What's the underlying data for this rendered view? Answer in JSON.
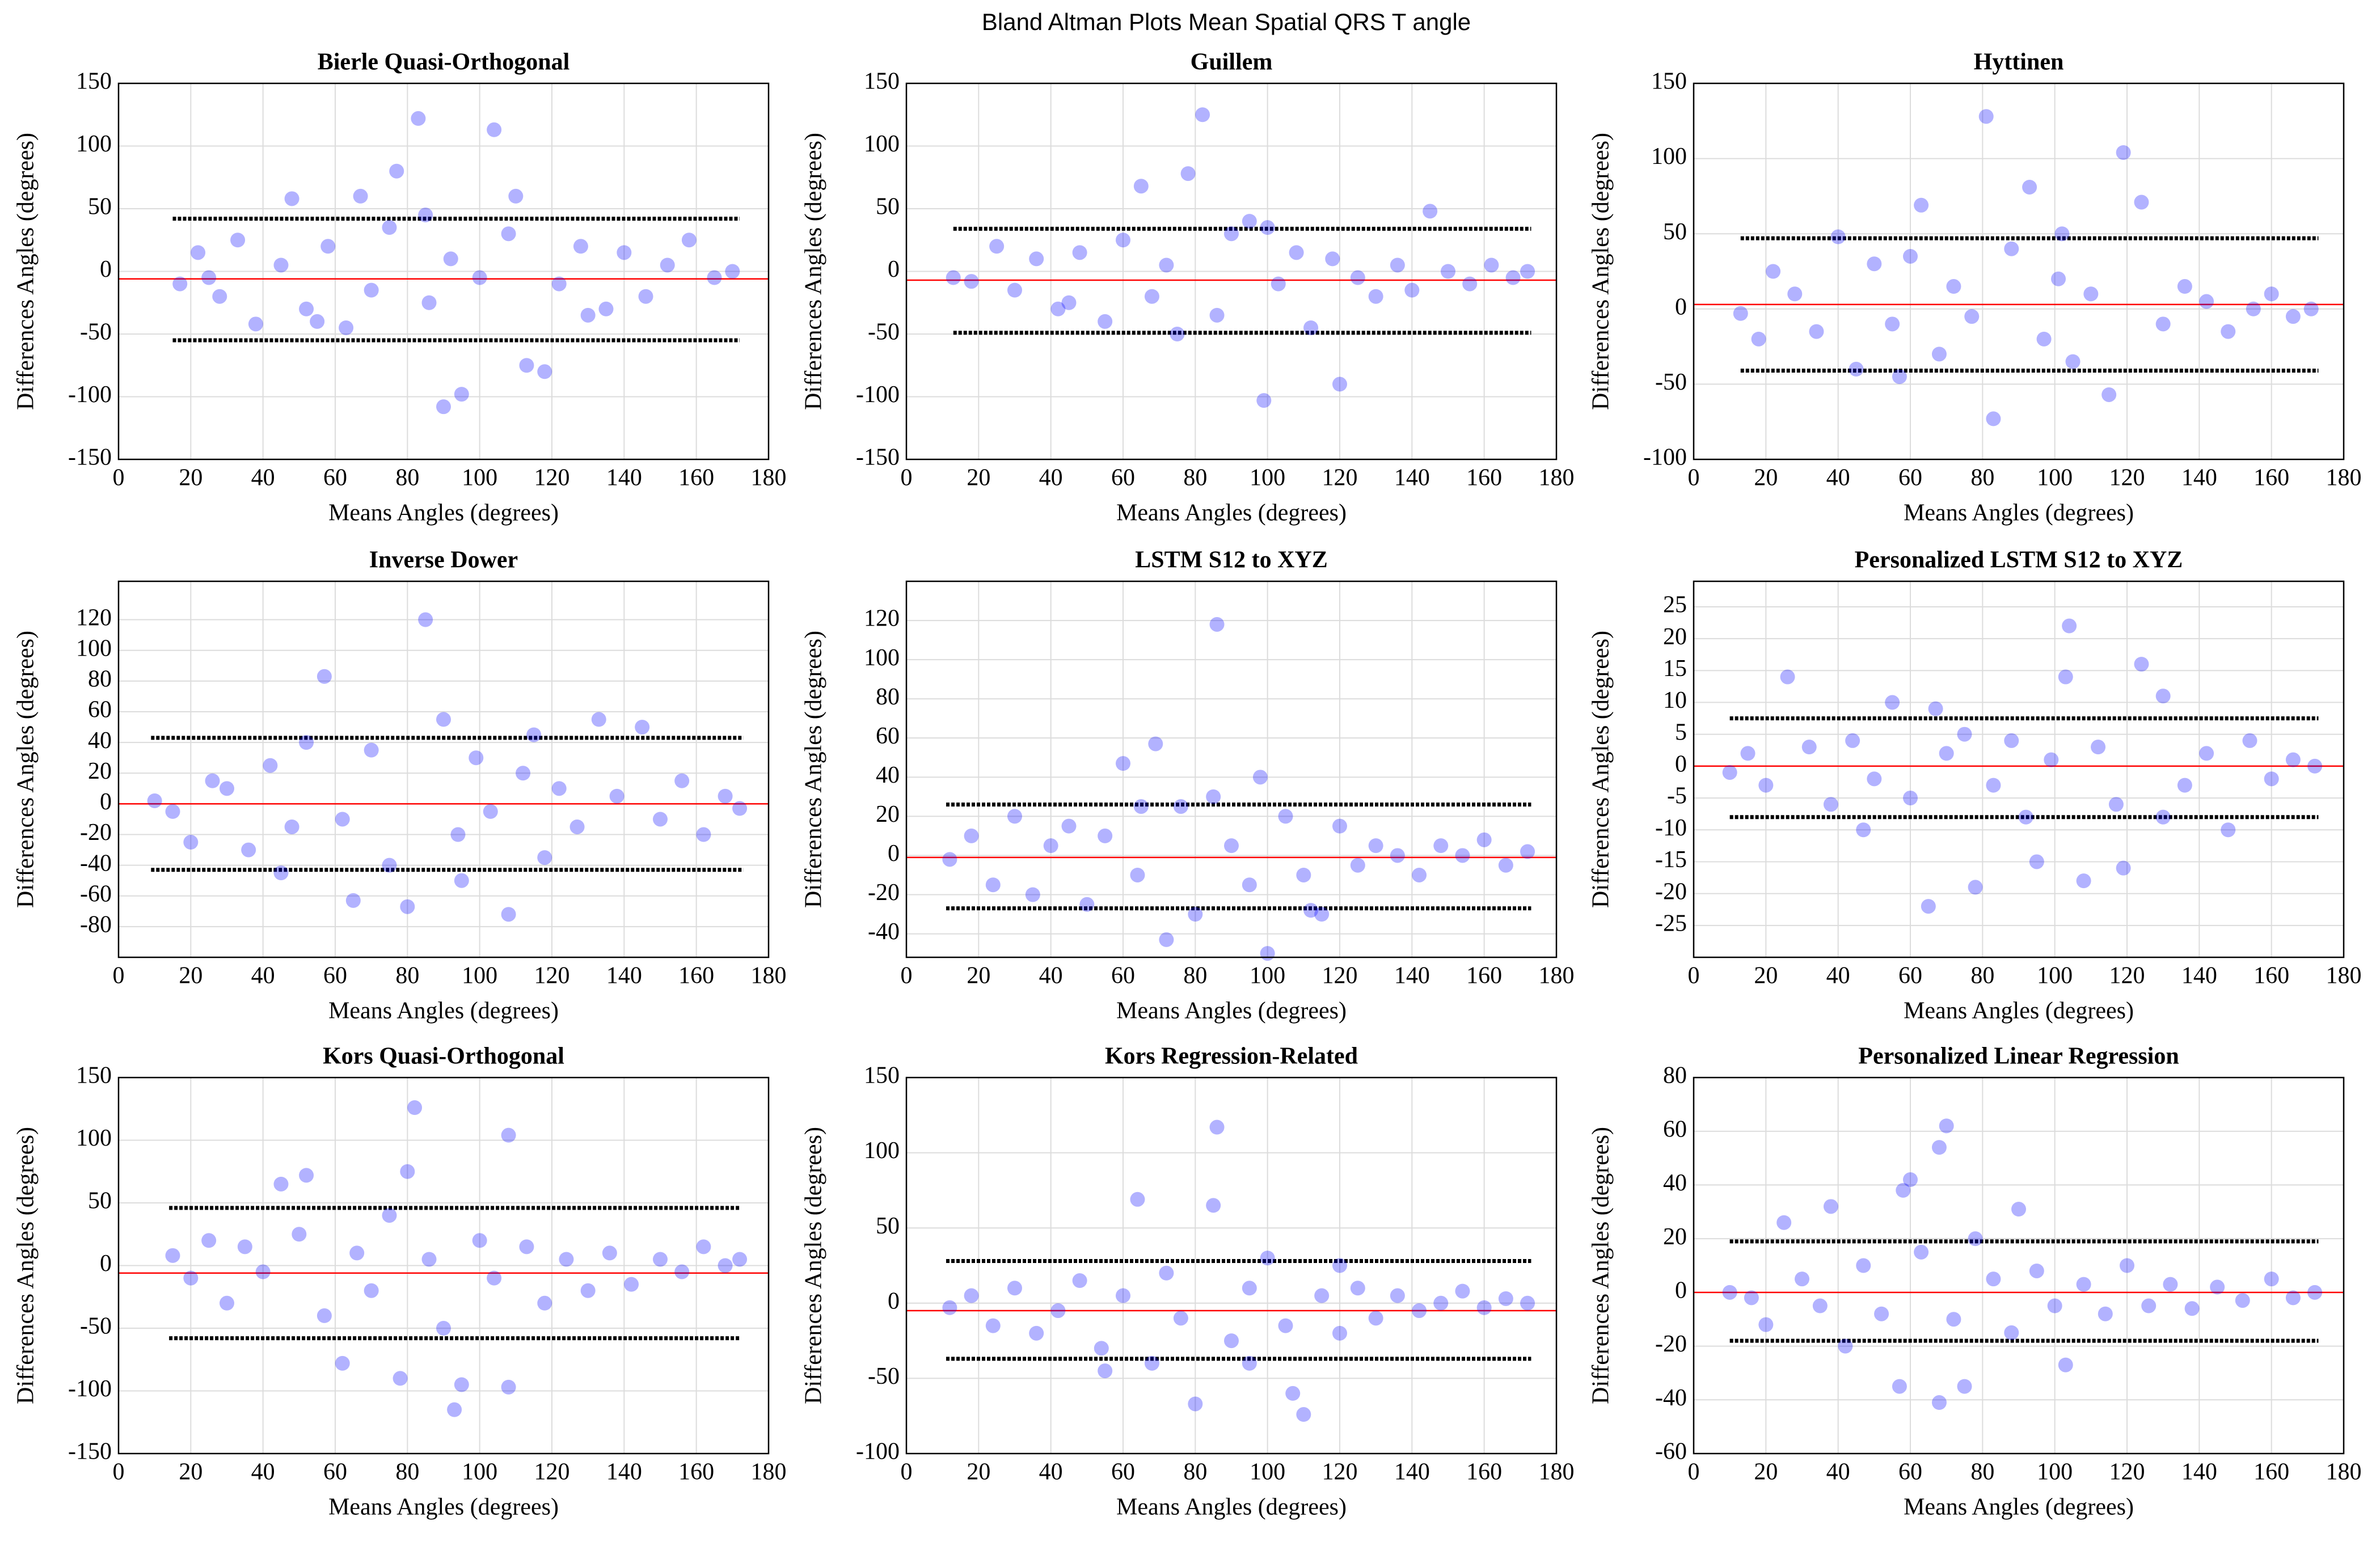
{
  "title": "Bland Altman Plots Mean Spatial QRS T angle",
  "chart_data": [
    {
      "type": "scatter",
      "title": "Bierle Quasi-Orthogonal",
      "xlabel": "Means Angles (degrees)",
      "ylabel": "Differences Angles (degrees)",
      "xlim": [
        0,
        180
      ],
      "xticks": [
        0,
        20,
        40,
        60,
        80,
        100,
        120,
        140,
        160,
        180
      ],
      "ylim": [
        -150,
        150
      ],
      "yticks": [
        -150,
        -100,
        -50,
        0,
        50,
        100,
        150
      ],
      "grid": true,
      "color": "#0000ff",
      "opacity": 0.3,
      "x": [
        17,
        22,
        28,
        33,
        38,
        45,
        48,
        52,
        58,
        63,
        67,
        70,
        75,
        77,
        83,
        86,
        90,
        92,
        95,
        100,
        104,
        108,
        110,
        113,
        118,
        122,
        128,
        135,
        140,
        146,
        152,
        158,
        165,
        170,
        25,
        55,
        85,
        130
      ],
      "values": [
        -10,
        15,
        -20,
        25,
        -42,
        5,
        58,
        -30,
        20,
        -45,
        60,
        -15,
        35,
        80,
        122,
        -25,
        -108,
        10,
        -98,
        -5,
        113,
        30,
        60,
        -75,
        -80,
        -10,
        20,
        -30,
        15,
        -20,
        5,
        25,
        -5,
        0,
        -5,
        -40,
        45,
        -35
      ],
      "mean_line": {
        "value": -6,
        "color": "#ff0000"
      },
      "limit_lines": {
        "values": [
          42,
          -55
        ],
        "x": [
          15,
          172
        ],
        "color": "#000000"
      }
    },
    {
      "type": "scatter",
      "title": "Guillem",
      "xlabel": "Means Angles (degrees)",
      "ylabel": "Differences Angles (degrees)",
      "xlim": [
        0,
        180
      ],
      "xticks": [
        0,
        20,
        40,
        60,
        80,
        100,
        120,
        140,
        160,
        180
      ],
      "ylim": [
        -150,
        150
      ],
      "yticks": [
        -150,
        -100,
        -50,
        0,
        50,
        100,
        150
      ],
      "grid": true,
      "color": "#0000ff",
      "opacity": 0.3,
      "x": [
        13,
        18,
        25,
        30,
        36,
        42,
        48,
        55,
        60,
        65,
        68,
        72,
        78,
        82,
        86,
        90,
        95,
        99,
        103,
        108,
        112,
        118,
        120,
        125,
        130,
        136,
        140,
        145,
        150,
        156,
        162,
        168,
        172,
        45,
        75,
        100
      ],
      "values": [
        -5,
        -8,
        20,
        -15,
        10,
        -30,
        15,
        -40,
        25,
        68,
        -20,
        5,
        78,
        125,
        -35,
        30,
        40,
        -103,
        -10,
        15,
        -45,
        10,
        -90,
        -5,
        -20,
        5,
        -15,
        48,
        0,
        -10,
        5,
        -5,
        0,
        -25,
        -50,
        35
      ],
      "mean_line": {
        "value": -7,
        "color": "#ff0000"
      },
      "limit_lines": {
        "values": [
          34,
          -49
        ],
        "x": [
          13,
          173
        ],
        "color": "#000000"
      }
    },
    {
      "type": "scatter",
      "title": "Hyttinen",
      "xlabel": "Means Angles (degrees)",
      "ylabel": "Differences Angles (degrees)",
      "xlim": [
        0,
        180
      ],
      "xticks": [
        0,
        20,
        40,
        60,
        80,
        100,
        120,
        140,
        160,
        180
      ],
      "ylim": [
        -100,
        150
      ],
      "yticks": [
        -100,
        -50,
        0,
        50,
        100,
        150
      ],
      "grid": true,
      "color": "#0000ff",
      "opacity": 0.3,
      "x": [
        13,
        18,
        22,
        28,
        34,
        40,
        45,
        50,
        55,
        60,
        63,
        68,
        72,
        77,
        81,
        83,
        88,
        93,
        97,
        101,
        105,
        110,
        115,
        119,
        124,
        130,
        136,
        142,
        148,
        155,
        160,
        166,
        171,
        57,
        102
      ],
      "values": [
        -3,
        -20,
        25,
        10,
        -15,
        48,
        -40,
        30,
        -10,
        35,
        69,
        -30,
        15,
        -5,
        128,
        -73,
        40,
        81,
        -20,
        20,
        -35,
        10,
        -57,
        104,
        71,
        -10,
        15,
        5,
        -15,
        0,
        10,
        -5,
        0,
        -45,
        50
      ],
      "mean_line": {
        "value": 3,
        "color": "#ff0000"
      },
      "limit_lines": {
        "values": [
          47,
          -41
        ],
        "x": [
          13,
          173
        ],
        "color": "#000000"
      }
    },
    {
      "type": "scatter",
      "title": "Inverse Dower",
      "xlabel": "Means Angles (degrees)",
      "ylabel": "Differences Angles (degrees)",
      "xlim": [
        0,
        180
      ],
      "xticks": [
        0,
        20,
        40,
        60,
        80,
        100,
        120,
        140,
        160,
        180
      ],
      "ylim": [
        -100,
        145
      ],
      "yticks": [
        -80,
        -60,
        -40,
        -20,
        0,
        20,
        40,
        60,
        80,
        100,
        120
      ],
      "grid": true,
      "color": "#0000ff",
      "opacity": 0.3,
      "x": [
        10,
        15,
        20,
        26,
        30,
        36,
        42,
        48,
        52,
        57,
        62,
        65,
        70,
        75,
        80,
        85,
        90,
        94,
        99,
        103,
        108,
        112,
        118,
        122,
        127,
        133,
        138,
        145,
        150,
        156,
        162,
        168,
        172,
        45,
        95,
        115
      ],
      "values": [
        2,
        -5,
        -25,
        15,
        10,
        -30,
        25,
        -15,
        40,
        83,
        -10,
        -63,
        35,
        -40,
        -67,
        120,
        55,
        -20,
        30,
        -5,
        -72,
        20,
        -35,
        10,
        -15,
        55,
        5,
        50,
        -10,
        15,
        -20,
        5,
        -3,
        -45,
        -50,
        45
      ],
      "mean_line": {
        "value": 0,
        "color": "#ff0000"
      },
      "limit_lines": {
        "values": [
          43,
          -43
        ],
        "x": [
          9,
          173
        ],
        "color": "#000000"
      }
    },
    {
      "type": "scatter",
      "title": "LSTM S12 to XYZ",
      "xlabel": "Means Angles (degrees)",
      "ylabel": "Differences Angles (degrees)",
      "xlim": [
        0,
        180
      ],
      "xticks": [
        0,
        20,
        40,
        60,
        80,
        100,
        120,
        140,
        160,
        180
      ],
      "ylim": [
        -52,
        140
      ],
      "yticks": [
        -40,
        -20,
        0,
        20,
        40,
        60,
        80,
        100,
        120
      ],
      "grid": true,
      "color": "#0000ff",
      "opacity": 0.3,
      "x": [
        12,
        18,
        24,
        30,
        35,
        40,
        45,
        50,
        55,
        60,
        64,
        69,
        72,
        76,
        80,
        86,
        90,
        95,
        98,
        100,
        105,
        110,
        115,
        120,
        125,
        130,
        136,
        142,
        148,
        154,
        160,
        166,
        172,
        65,
        85,
        112
      ],
      "values": [
        -2,
        10,
        -15,
        20,
        -20,
        5,
        15,
        -25,
        10,
        47,
        -10,
        57,
        -43,
        25,
        -30,
        118,
        5,
        -15,
        40,
        -50,
        20,
        -10,
        -30,
        15,
        -5,
        5,
        0,
        -10,
        5,
        0,
        8,
        -5,
        2,
        25,
        30,
        -28
      ],
      "mean_line": {
        "value": -1,
        "color": "#ff0000"
      },
      "limit_lines": {
        "values": [
          26,
          -27
        ],
        "x": [
          11,
          173
        ],
        "color": "#000000"
      }
    },
    {
      "type": "scatter",
      "title": "Personalized LSTM S12 to XYZ",
      "xlabel": "Means Angles (degrees)",
      "ylabel": "Differences Angles (degrees)",
      "xlim": [
        0,
        180
      ],
      "xticks": [
        0,
        20,
        40,
        60,
        80,
        100,
        120,
        140,
        160,
        180
      ],
      "ylim": [
        -30,
        29
      ],
      "yticks": [
        -25,
        -20,
        -15,
        -10,
        -5,
        0,
        5,
        10,
        15,
        20,
        25
      ],
      "grid": true,
      "color": "#0000ff",
      "opacity": 0.3,
      "x": [
        10,
        15,
        20,
        26,
        32,
        38,
        44,
        50,
        55,
        60,
        65,
        70,
        75,
        78,
        83,
        88,
        92,
        95,
        99,
        103,
        104,
        108,
        112,
        117,
        119,
        124,
        130,
        136,
        142,
        148,
        154,
        160,
        166,
        172,
        47,
        67,
        130
      ],
      "values": [
        -1,
        2,
        -3,
        14,
        3,
        -6,
        4,
        -2,
        10,
        -5,
        -22,
        2,
        5,
        -19,
        -3,
        4,
        -8,
        -15,
        1,
        14,
        22,
        -18,
        3,
        -6,
        -16,
        16,
        11,
        -3,
        2,
        -10,
        4,
        -2,
        1,
        0,
        -10,
        9,
        -8
      ],
      "mean_line": {
        "value": 0,
        "color": "#ff0000"
      },
      "limit_lines": {
        "values": [
          7.5,
          -8
        ],
        "x": [
          10,
          173
        ],
        "color": "#000000"
      }
    },
    {
      "type": "scatter",
      "title": "Kors Quasi-Orthogonal",
      "xlabel": "Means Angles (degrees)",
      "ylabel": "Differences Angles (degrees)",
      "xlim": [
        0,
        180
      ],
      "xticks": [
        0,
        20,
        40,
        60,
        80,
        100,
        120,
        140,
        160,
        180
      ],
      "ylim": [
        -150,
        150
      ],
      "yticks": [
        -150,
        -100,
        -50,
        0,
        50,
        100,
        150
      ],
      "grid": true,
      "color": "#0000ff",
      "opacity": 0.3,
      "x": [
        15,
        20,
        25,
        30,
        35,
        40,
        45,
        50,
        52,
        57,
        62,
        66,
        70,
        75,
        78,
        80,
        82,
        86,
        90,
        93,
        95,
        100,
        104,
        108,
        108,
        113,
        118,
        124,
        130,
        136,
        142,
        150,
        156,
        162,
        168,
        172
      ],
      "values": [
        8,
        -10,
        20,
        -30,
        15,
        -5,
        65,
        25,
        72,
        -40,
        -78,
        10,
        -20,
        40,
        -90,
        75,
        126,
        5,
        -50,
        -115,
        -95,
        20,
        -10,
        104,
        -97,
        15,
        -30,
        5,
        -20,
        10,
        -15,
        5,
        -5,
        15,
        0,
        5
      ],
      "mean_line": {
        "value": -6,
        "color": "#ff0000"
      },
      "limit_lines": {
        "values": [
          46,
          -58
        ],
        "x": [
          14,
          172
        ],
        "color": "#000000"
      }
    },
    {
      "type": "scatter",
      "title": "Kors Regression-Related",
      "xlabel": "Means Angles (degrees)",
      "ylabel": "Differences Angles (degrees)",
      "xlim": [
        0,
        180
      ],
      "xticks": [
        0,
        20,
        40,
        60,
        80,
        100,
        120,
        140,
        160,
        180
      ],
      "ylim": [
        -100,
        150
      ],
      "yticks": [
        -100,
        -50,
        0,
        50,
        100,
        150
      ],
      "grid": true,
      "color": "#0000ff",
      "opacity": 0.3,
      "x": [
        12,
        18,
        24,
        30,
        36,
        42,
        48,
        54,
        60,
        64,
        68,
        72,
        76,
        80,
        85,
        86,
        90,
        95,
        100,
        105,
        107,
        110,
        115,
        120,
        125,
        130,
        136,
        142,
        148,
        154,
        160,
        166,
        172,
        55,
        95,
        120
      ],
      "values": [
        -3,
        5,
        -15,
        10,
        -20,
        -5,
        15,
        -30,
        5,
        69,
        -40,
        20,
        -10,
        -67,
        65,
        117,
        -25,
        10,
        30,
        -15,
        -60,
        -74,
        5,
        -20,
        10,
        -10,
        5,
        -5,
        0,
        8,
        -3,
        3,
        0,
        -45,
        -40,
        25
      ],
      "mean_line": {
        "value": -5,
        "color": "#ff0000"
      },
      "limit_lines": {
        "values": [
          28,
          -37
        ],
        "x": [
          11,
          173
        ],
        "color": "#000000"
      }
    },
    {
      "type": "scatter",
      "title": "Personalized Linear Regression",
      "xlabel": "Means Angles (degrees)",
      "ylabel": "Differences Angles (degrees)",
      "xlim": [
        0,
        180
      ],
      "xticks": [
        0,
        20,
        40,
        60,
        80,
        100,
        120,
        140,
        160,
        180
      ],
      "ylim": [
        -60,
        80
      ],
      "yticks": [
        -60,
        -40,
        -20,
        0,
        20,
        40,
        60,
        80
      ],
      "grid": true,
      "color": "#0000ff",
      "opacity": 0.3,
      "x": [
        10,
        16,
        20,
        25,
        30,
        35,
        38,
        42,
        47,
        52,
        57,
        58,
        60,
        63,
        68,
        68,
        70,
        72,
        75,
        78,
        83,
        88,
        90,
        95,
        100,
        103,
        108,
        114,
        120,
        126,
        132,
        138,
        145,
        152,
        160,
        166,
        172
      ],
      "values": [
        0,
        -2,
        -12,
        26,
        5,
        -5,
        32,
        -20,
        10,
        -8,
        -35,
        38,
        42,
        15,
        54,
        -41,
        62,
        -10,
        -35,
        20,
        5,
        -15,
        31,
        8,
        -5,
        -27,
        3,
        -8,
        10,
        -5,
        3,
        -6,
        2,
        -3,
        5,
        -2,
        0
      ],
      "mean_line": {
        "value": 0,
        "color": "#ff0000"
      },
      "limit_lines": {
        "values": [
          19,
          -18
        ],
        "x": [
          10,
          173
        ],
        "color": "#000000"
      }
    }
  ]
}
